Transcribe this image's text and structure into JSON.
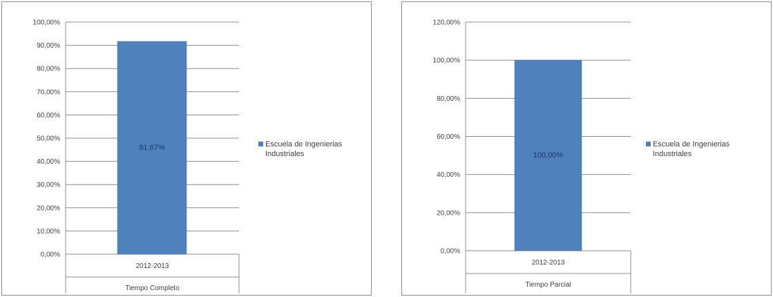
{
  "colors": {
    "bar": "#4f81bd",
    "bar_edge": "#3f6ea3",
    "grid": "#8c8c8c",
    "axis": "#8c8c8c"
  },
  "chart_data": [
    {
      "type": "bar",
      "categories": [
        "2012-2013"
      ],
      "group_label": "Tiempo Completo",
      "series": [
        {
          "name": "Escuela de Ingenierias Industriales",
          "values": [
            91.67
          ]
        }
      ],
      "data_labels": [
        "91,67%"
      ],
      "ylim": [
        0,
        100
      ],
      "y_step": 10,
      "y_tick_labels": [
        "0,00%",
        "10,00%",
        "20,00%",
        "30,00%",
        "40,00%",
        "50,00%",
        "60,00%",
        "70,00%",
        "80,00%",
        "90,00%",
        "100,00%"
      ],
      "legend_lines": [
        "Escuela de Ingenierias",
        "Industriales"
      ],
      "legend_position": "right",
      "grid": true,
      "title": "",
      "xlabel": "",
      "ylabel": ""
    },
    {
      "type": "bar",
      "categories": [
        "2012-2013"
      ],
      "group_label": "Tiempo Parcial",
      "series": [
        {
          "name": "Escuela de Ingenierias Industriales",
          "values": [
            100
          ]
        }
      ],
      "data_labels": [
        "100,00%"
      ],
      "ylim": [
        0,
        120
      ],
      "y_step": 20,
      "y_tick_labels": [
        "0,00%",
        "20,00%",
        "40,00%",
        "60,00%",
        "80,00%",
        "100,00%",
        "120,00%"
      ],
      "legend_lines": [
        "Escuela de Ingenierias",
        "Industriales"
      ],
      "legend_position": "right",
      "grid": true,
      "title": "",
      "xlabel": "",
      "ylabel": ""
    }
  ]
}
